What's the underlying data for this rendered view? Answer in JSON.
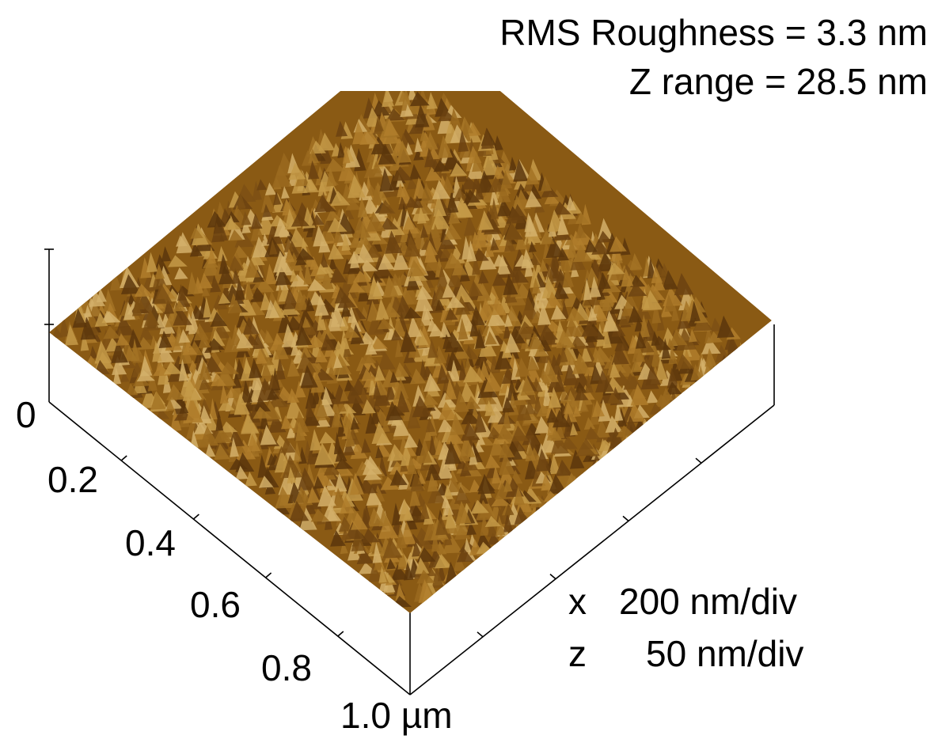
{
  "annotations": {
    "rms": "RMS Roughness = 3.3 nm",
    "z_range": "Z range = 28.5 nm"
  },
  "axis": {
    "labels": [
      "0",
      "0.2",
      "0.4",
      "0.6",
      "0.8",
      "1.0 µm"
    ]
  },
  "scale": {
    "x": {
      "axis": "x",
      "value": "200 nm/div"
    },
    "z": {
      "axis": "z",
      "value": "50 nm/div"
    }
  }
}
